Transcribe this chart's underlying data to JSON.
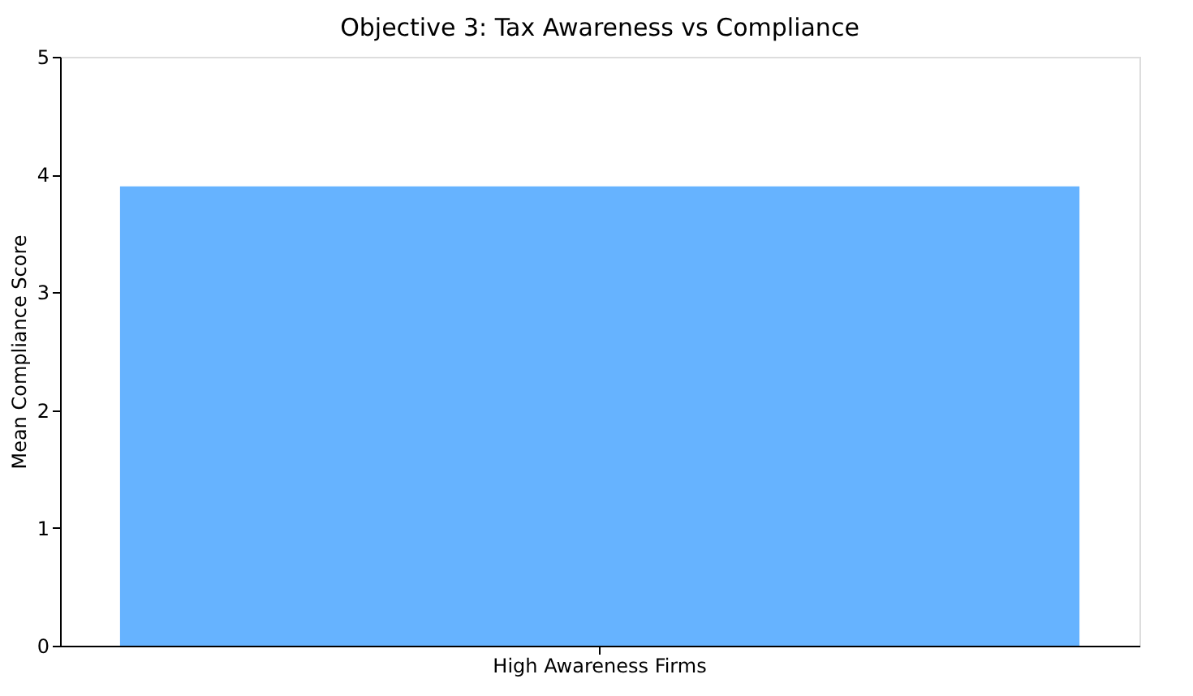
{
  "chart_data": {
    "type": "bar",
    "title": "Objective 3: Tax Awareness vs Compliance",
    "ylabel": "Mean Compliance Score",
    "categories": [
      "High Awareness Firms"
    ],
    "values": [
      3.9
    ],
    "color": "#66b3ff",
    "ylim": [
      0,
      5
    ],
    "yticks": [
      0,
      1,
      2,
      3,
      4,
      5
    ],
    "grid": false
  }
}
